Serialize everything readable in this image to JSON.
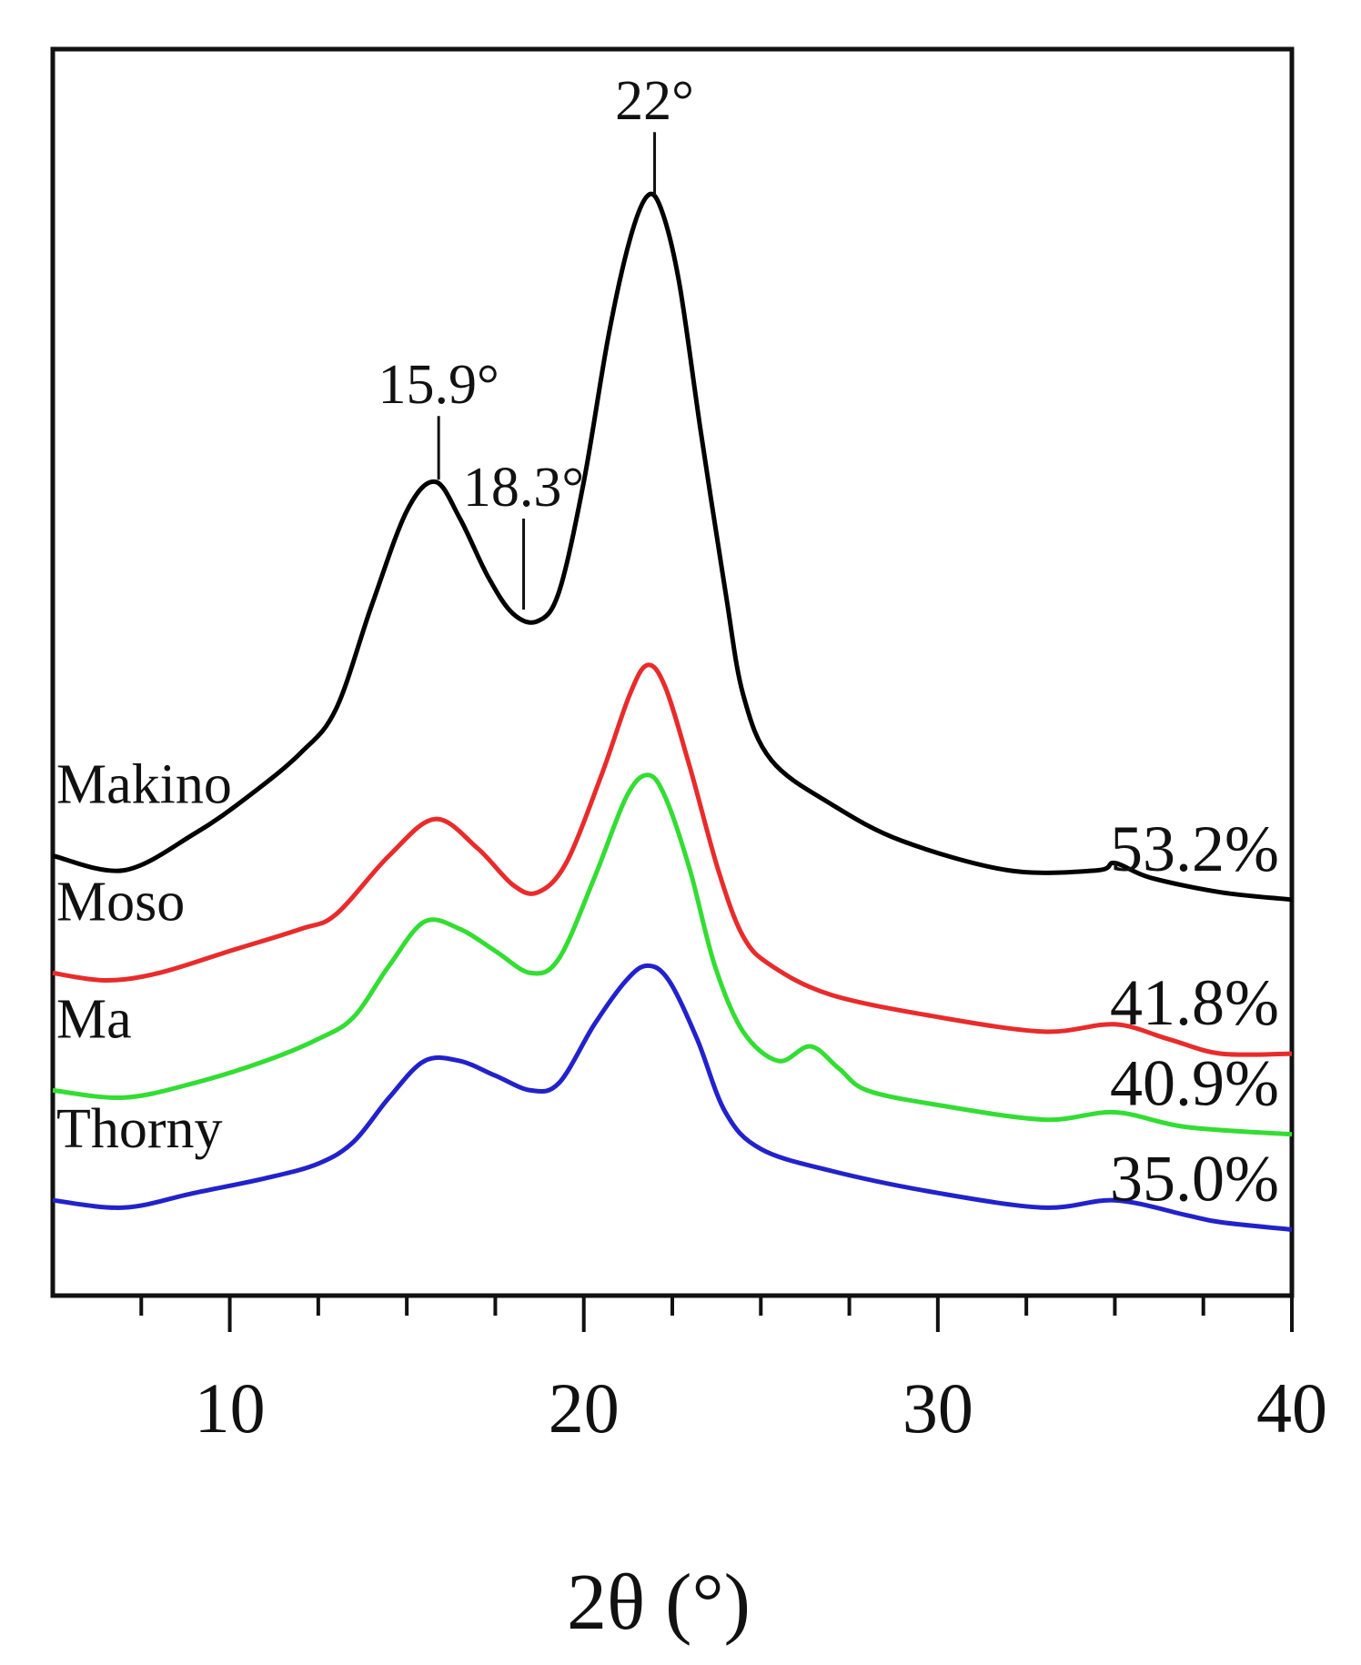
{
  "chart_data": {
    "type": "line",
    "title": "",
    "xlabel": "2θ (°)",
    "ylabel": "",
    "xlim": [
      5,
      40
    ],
    "xticks": [
      10,
      20,
      30,
      40
    ],
    "tick_labels": [
      "10",
      "20",
      "30",
      "40"
    ],
    "series": [
      {
        "name": "Makino",
        "crystallinity": "53.2%",
        "color": "#000000",
        "x": [
          5,
          7,
          9,
          10.5,
          12,
          13,
          14,
          15,
          15.8,
          16.5,
          17.3,
          18,
          18.7,
          19.3,
          20,
          20.7,
          21.3,
          21.8,
          22.2,
          22.7,
          23.3,
          24,
          24.5,
          25.3,
          27,
          29,
          32,
          34.5,
          35,
          36,
          38,
          40
        ],
        "y": [
          0.52,
          0.5,
          0.55,
          0.6,
          0.66,
          0.72,
          0.86,
          0.99,
          1.03,
          0.98,
          0.9,
          0.85,
          0.84,
          0.88,
          1.03,
          1.23,
          1.36,
          1.42,
          1.4,
          1.3,
          1.1,
          0.88,
          0.74,
          0.65,
          0.59,
          0.54,
          0.5,
          0.5,
          0.51,
          0.49,
          0.47,
          0.46
        ]
      },
      {
        "name": "Moso",
        "crystallinity": "41.8%",
        "color": "#e82b2b",
        "x": [
          5,
          6.5,
          8,
          10,
          12,
          13,
          14.5,
          15.8,
          17,
          18,
          18.7,
          19.5,
          20.5,
          21.3,
          21.8,
          22.3,
          23,
          23.8,
          24.5,
          25.3,
          27,
          30,
          33,
          35,
          36.5,
          38,
          40
        ],
        "y": [
          0.36,
          0.35,
          0.36,
          0.39,
          0.42,
          0.44,
          0.52,
          0.57,
          0.53,
          0.48,
          0.47,
          0.51,
          0.63,
          0.74,
          0.78,
          0.75,
          0.64,
          0.5,
          0.41,
          0.37,
          0.33,
          0.3,
          0.28,
          0.29,
          0.27,
          0.25,
          0.25
        ]
      },
      {
        "name": "Ma",
        "crystallinity": "40.9%",
        "color": "#33dd33",
        "x": [
          5,
          7,
          9,
          11,
          12.5,
          13.5,
          14.5,
          15.5,
          16.5,
          17.5,
          18.5,
          19.3,
          20.3,
          21.2,
          21.8,
          22.3,
          23,
          23.7,
          24.5,
          25.5,
          26.4,
          27.2,
          28,
          30,
          33,
          35,
          37,
          40
        ],
        "y": [
          0.2,
          0.19,
          0.21,
          0.24,
          0.27,
          0.3,
          0.37,
          0.43,
          0.42,
          0.39,
          0.36,
          0.38,
          0.49,
          0.6,
          0.63,
          0.6,
          0.5,
          0.37,
          0.28,
          0.24,
          0.26,
          0.23,
          0.2,
          0.18,
          0.16,
          0.17,
          0.15,
          0.14
        ]
      },
      {
        "name": "Thorny",
        "crystallinity": "35.0%",
        "color": "#2222cc",
        "x": [
          5,
          7,
          9,
          11,
          12.5,
          13.5,
          14.5,
          15.5,
          16.5,
          17.5,
          18.5,
          19.3,
          20.3,
          21.2,
          21.8,
          22.4,
          23.2,
          24,
          25,
          27,
          30,
          33,
          35,
          37,
          38,
          40
        ],
        "y": [
          0.05,
          0.04,
          0.06,
          0.08,
          0.1,
          0.13,
          0.19,
          0.24,
          0.24,
          0.22,
          0.2,
          0.21,
          0.29,
          0.35,
          0.37,
          0.35,
          0.27,
          0.17,
          0.12,
          0.09,
          0.06,
          0.04,
          0.05,
          0.03,
          0.02,
          0.01
        ]
      }
    ],
    "peaks": [
      {
        "label": "15.9°",
        "x": 15.9
      },
      {
        "label": "18.3°",
        "x": 18.3
      },
      {
        "label": "22°",
        "x": 22
      }
    ],
    "ylim": [
      -0.08,
      1.62
    ]
  }
}
